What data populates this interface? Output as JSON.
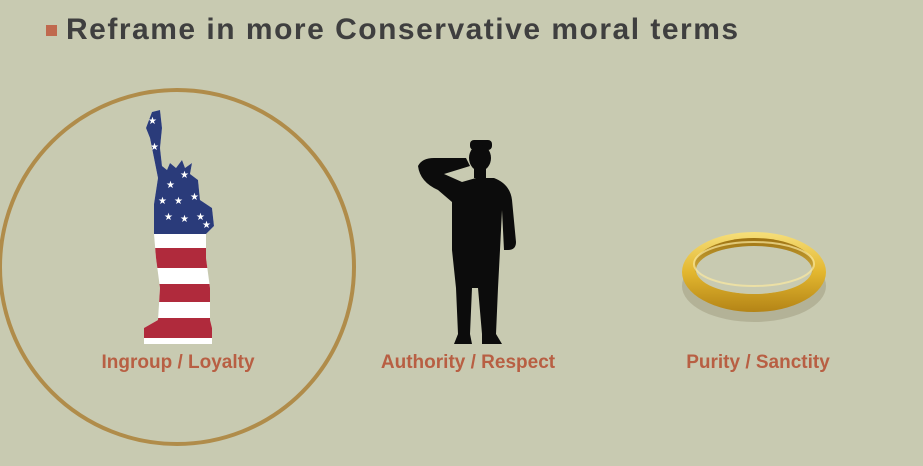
{
  "slide": {
    "title": "Reframe in more Conservative moral terms"
  },
  "items": [
    {
      "label": "Ingroup / Loyalty",
      "icon": "statue-of-liberty-flag-icon",
      "highlighted": true
    },
    {
      "label": "Authority / Respect",
      "icon": "saluting-soldier-icon",
      "highlighted": false
    },
    {
      "label": "Purity / Sanctity",
      "icon": "gold-ring-icon",
      "highlighted": false
    }
  ],
  "colors": {
    "background": "#c8cab1",
    "bullet": "#c0694e",
    "title": "#3f3f3f",
    "caption": "#b85f43",
    "highlight_circle": "#b08c4a",
    "flag_blue": "#2a3b7a",
    "flag_red": "#b02a3c",
    "gold": "#e7c44a"
  }
}
